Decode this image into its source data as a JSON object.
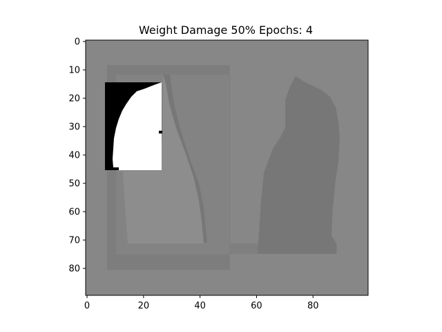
{
  "chart_data": {
    "type": "heatmap",
    "title": "Weight Damage 50% Epochs: 4",
    "xlim": [
      -0.5,
      99.5
    ],
    "ylim": [
      89.5,
      -0.5
    ],
    "x_ticks": [
      0,
      20,
      40,
      60,
      80
    ],
    "y_ticks": [
      0,
      10,
      20,
      30,
      40,
      50,
      60,
      70,
      80
    ],
    "colormap": "gray",
    "grid": false,
    "image_size": {
      "columns": 100,
      "rows": 90
    },
    "background_value": 0.52,
    "regions": [
      {
        "name": "outer frame",
        "x": [
          7.5,
          50.5
        ],
        "y": [
          8.5,
          80.5
        ],
        "value": 0.49
      },
      {
        "name": "lower band",
        "x": [
          50.5,
          51.5
        ],
        "y": [
          71.5,
          80.5
        ],
        "value": 0.49
      },
      {
        "name": "left cat body",
        "x": [
          12.5,
          40.5
        ],
        "y": [
          50.5,
          71.5
        ],
        "value": 0.55
      },
      {
        "name": "right cat body",
        "x": [
          61.5,
          89.5
        ],
        "y": [
          26.5,
          72.5
        ],
        "value": 0.45
      },
      {
        "name": "white patch",
        "x": [
          6.5,
          26.5
        ],
        "y": [
          14.5,
          45.5
        ],
        "value": 1.0
      },
      {
        "name": "black patch edge",
        "x": [
          6.5,
          11.5
        ],
        "y": [
          14.5,
          45.5
        ],
        "value": 0.0
      }
    ]
  },
  "colors": {
    "background": "#878787",
    "frame": "#7c7c7c",
    "light_cat": "#8c8c8c",
    "dark_cat": "#767676",
    "white": "#ffffff",
    "black": "#000000",
    "axes_edge": "#000000"
  }
}
